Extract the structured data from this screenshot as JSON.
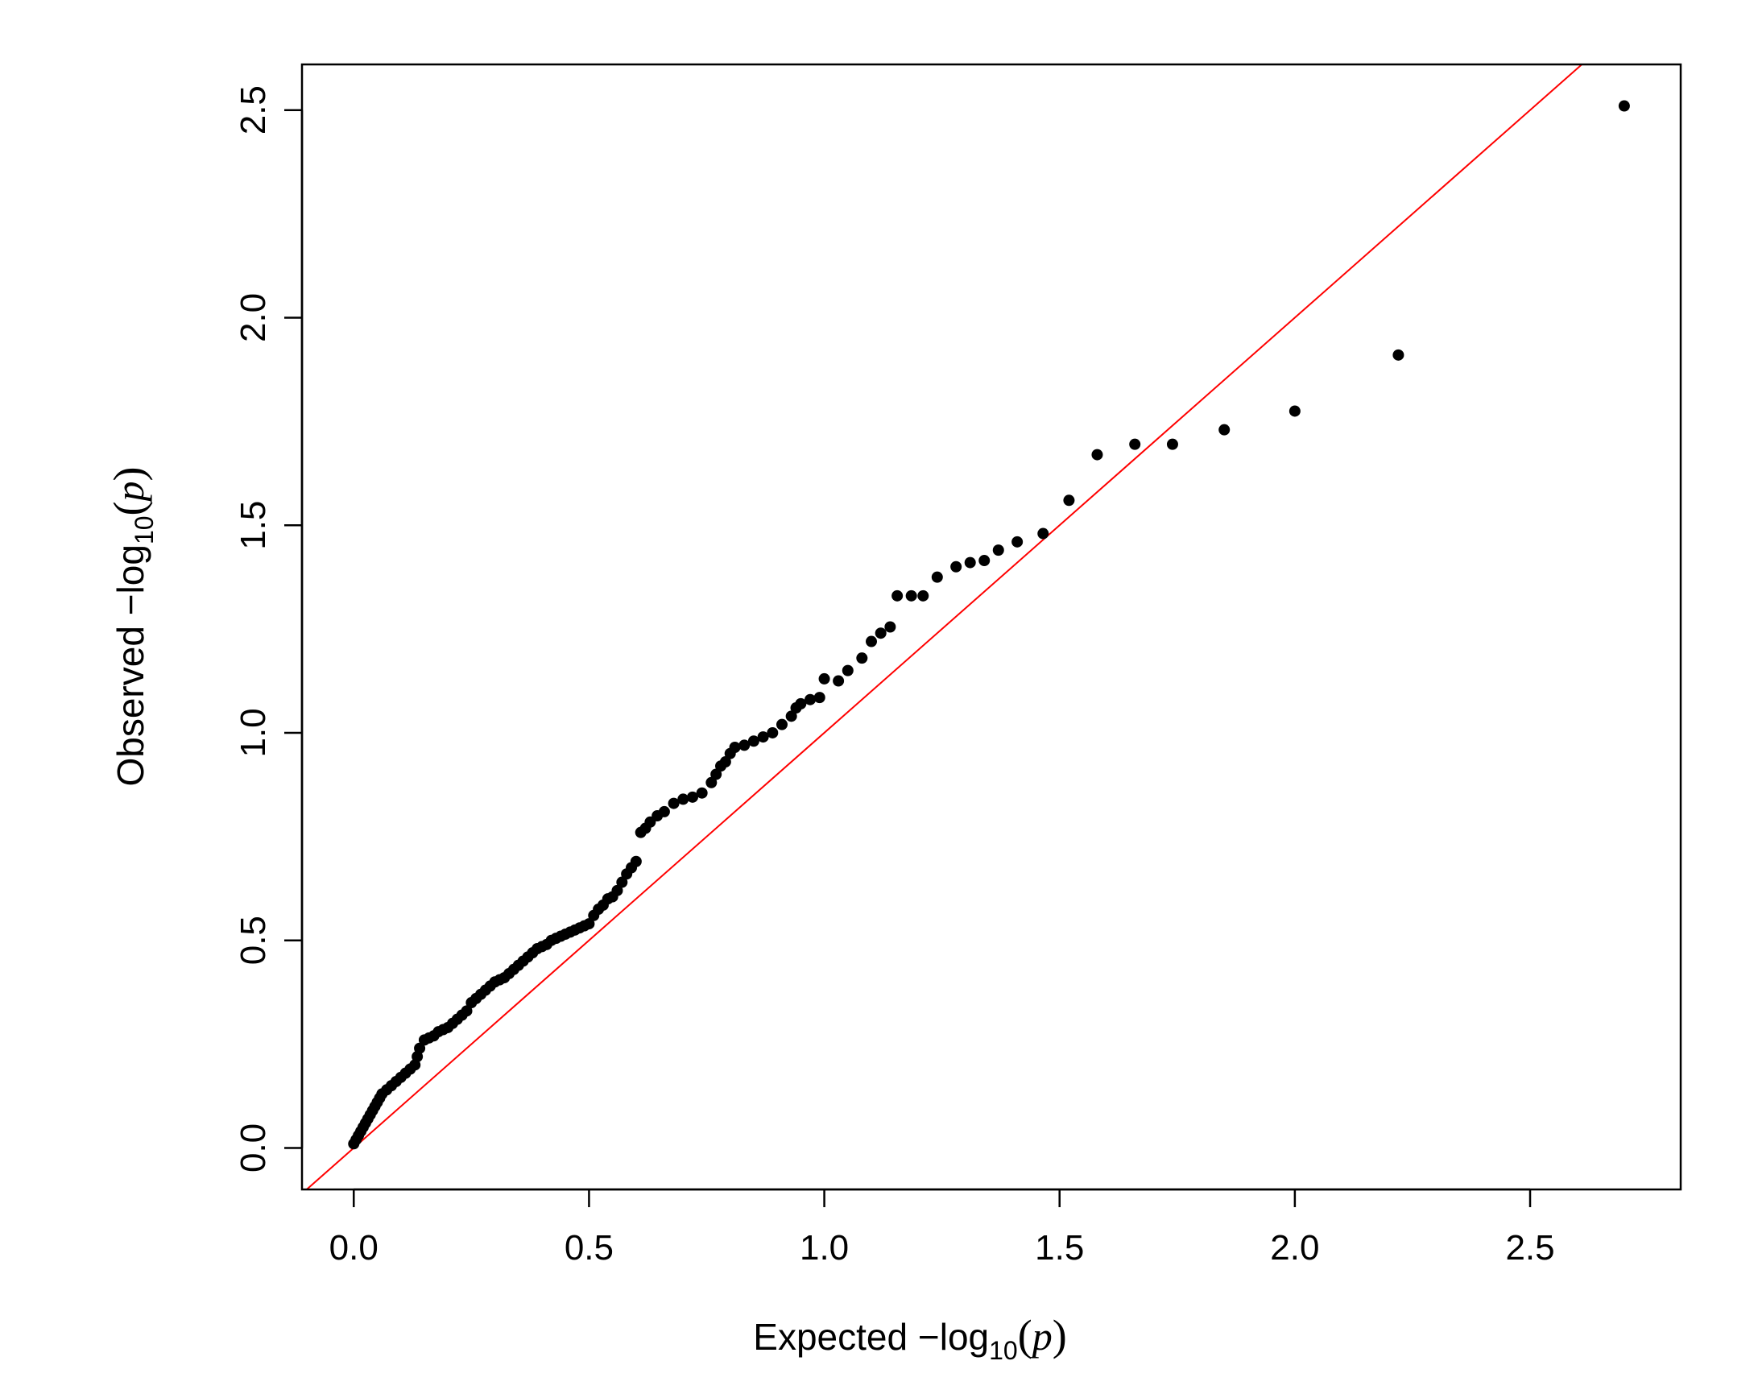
{
  "chart_data": {
    "type": "scatter",
    "title": "",
    "xlabel": {
      "prefix": "Expected  −log",
      "sub": "10",
      "open": "(",
      "var": "p",
      "close": ")"
    },
    "ylabel": {
      "prefix": "Observed  −log",
      "sub": "10",
      "open": "(",
      "var": "p",
      "close": ")"
    },
    "xlim": [
      -0.11,
      2.82
    ],
    "ylim": [
      -0.1,
      2.61
    ],
    "xticks": [
      0.0,
      0.5,
      1.0,
      1.5,
      2.0,
      2.5
    ],
    "xtick_labels": [
      "0.0",
      "0.5",
      "1.0",
      "1.5",
      "2.0",
      "2.5"
    ],
    "yticks": [
      0.0,
      0.5,
      1.0,
      1.5,
      2.0,
      2.5
    ],
    "ytick_labels": [
      "0.0",
      "0.5",
      "1.0",
      "1.5",
      "2.0",
      "2.5"
    ],
    "grid": false,
    "reference_line": {
      "slope": 1,
      "intercept": 0,
      "color": "#ff0000"
    },
    "point_color": "#000000",
    "points": [
      [
        0.0,
        0.01
      ],
      [
        0.005,
        0.02
      ],
      [
        0.01,
        0.03
      ],
      [
        0.015,
        0.04
      ],
      [
        0.02,
        0.05
      ],
      [
        0.025,
        0.06
      ],
      [
        0.03,
        0.07
      ],
      [
        0.035,
        0.08
      ],
      [
        0.04,
        0.09
      ],
      [
        0.045,
        0.1
      ],
      [
        0.05,
        0.11
      ],
      [
        0.055,
        0.12
      ],
      [
        0.06,
        0.13
      ],
      [
        0.07,
        0.14
      ],
      [
        0.08,
        0.15
      ],
      [
        0.09,
        0.16
      ],
      [
        0.1,
        0.17
      ],
      [
        0.11,
        0.18
      ],
      [
        0.12,
        0.19
      ],
      [
        0.13,
        0.2
      ],
      [
        0.135,
        0.22
      ],
      [
        0.14,
        0.24
      ],
      [
        0.15,
        0.26
      ],
      [
        0.16,
        0.265
      ],
      [
        0.17,
        0.27
      ],
      [
        0.18,
        0.28
      ],
      [
        0.19,
        0.285
      ],
      [
        0.2,
        0.29
      ],
      [
        0.21,
        0.3
      ],
      [
        0.22,
        0.31
      ],
      [
        0.23,
        0.32
      ],
      [
        0.24,
        0.33
      ],
      [
        0.25,
        0.35
      ],
      [
        0.26,
        0.36
      ],
      [
        0.27,
        0.37
      ],
      [
        0.28,
        0.38
      ],
      [
        0.29,
        0.39
      ],
      [
        0.3,
        0.4
      ],
      [
        0.31,
        0.405
      ],
      [
        0.32,
        0.41
      ],
      [
        0.33,
        0.42
      ],
      [
        0.34,
        0.43
      ],
      [
        0.35,
        0.44
      ],
      [
        0.36,
        0.45
      ],
      [
        0.37,
        0.46
      ],
      [
        0.38,
        0.47
      ],
      [
        0.39,
        0.48
      ],
      [
        0.4,
        0.485
      ],
      [
        0.41,
        0.49
      ],
      [
        0.42,
        0.5
      ],
      [
        0.43,
        0.505
      ],
      [
        0.44,
        0.51
      ],
      [
        0.45,
        0.515
      ],
      [
        0.46,
        0.52
      ],
      [
        0.47,
        0.525
      ],
      [
        0.48,
        0.53
      ],
      [
        0.49,
        0.535
      ],
      [
        0.5,
        0.54
      ],
      [
        0.51,
        0.56
      ],
      [
        0.52,
        0.575
      ],
      [
        0.53,
        0.585
      ],
      [
        0.54,
        0.6
      ],
      [
        0.55,
        0.605
      ],
      [
        0.56,
        0.62
      ],
      [
        0.57,
        0.64
      ],
      [
        0.58,
        0.66
      ],
      [
        0.59,
        0.675
      ],
      [
        0.6,
        0.69
      ],
      [
        0.61,
        0.76
      ],
      [
        0.62,
        0.77
      ],
      [
        0.63,
        0.785
      ],
      [
        0.645,
        0.8
      ],
      [
        0.66,
        0.81
      ],
      [
        0.68,
        0.83
      ],
      [
        0.7,
        0.84
      ],
      [
        0.72,
        0.845
      ],
      [
        0.74,
        0.855
      ],
      [
        0.76,
        0.88
      ],
      [
        0.77,
        0.9
      ],
      [
        0.78,
        0.92
      ],
      [
        0.79,
        0.93
      ],
      [
        0.8,
        0.95
      ],
      [
        0.81,
        0.965
      ],
      [
        0.83,
        0.97
      ],
      [
        0.85,
        0.98
      ],
      [
        0.87,
        0.99
      ],
      [
        0.89,
        1.0
      ],
      [
        0.91,
        1.02
      ],
      [
        0.93,
        1.04
      ],
      [
        0.94,
        1.06
      ],
      [
        0.95,
        1.07
      ],
      [
        0.97,
        1.08
      ],
      [
        0.99,
        1.085
      ],
      [
        1.0,
        1.13
      ],
      [
        1.03,
        1.125
      ],
      [
        1.05,
        1.15
      ],
      [
        1.08,
        1.18
      ],
      [
        1.1,
        1.22
      ],
      [
        1.12,
        1.24
      ],
      [
        1.14,
        1.255
      ],
      [
        1.155,
        1.33
      ],
      [
        1.185,
        1.33
      ],
      [
        1.21,
        1.33
      ],
      [
        1.24,
        1.375
      ],
      [
        1.28,
        1.4
      ],
      [
        1.31,
        1.41
      ],
      [
        1.34,
        1.415
      ],
      [
        1.37,
        1.44
      ],
      [
        1.41,
        1.46
      ],
      [
        1.465,
        1.48
      ],
      [
        1.52,
        1.56
      ],
      [
        1.58,
        1.67
      ],
      [
        1.66,
        1.695
      ],
      [
        1.74,
        1.695
      ],
      [
        1.85,
        1.73
      ],
      [
        2.0,
        1.775
      ],
      [
        2.22,
        1.91
      ],
      [
        2.7,
        2.51
      ]
    ]
  }
}
